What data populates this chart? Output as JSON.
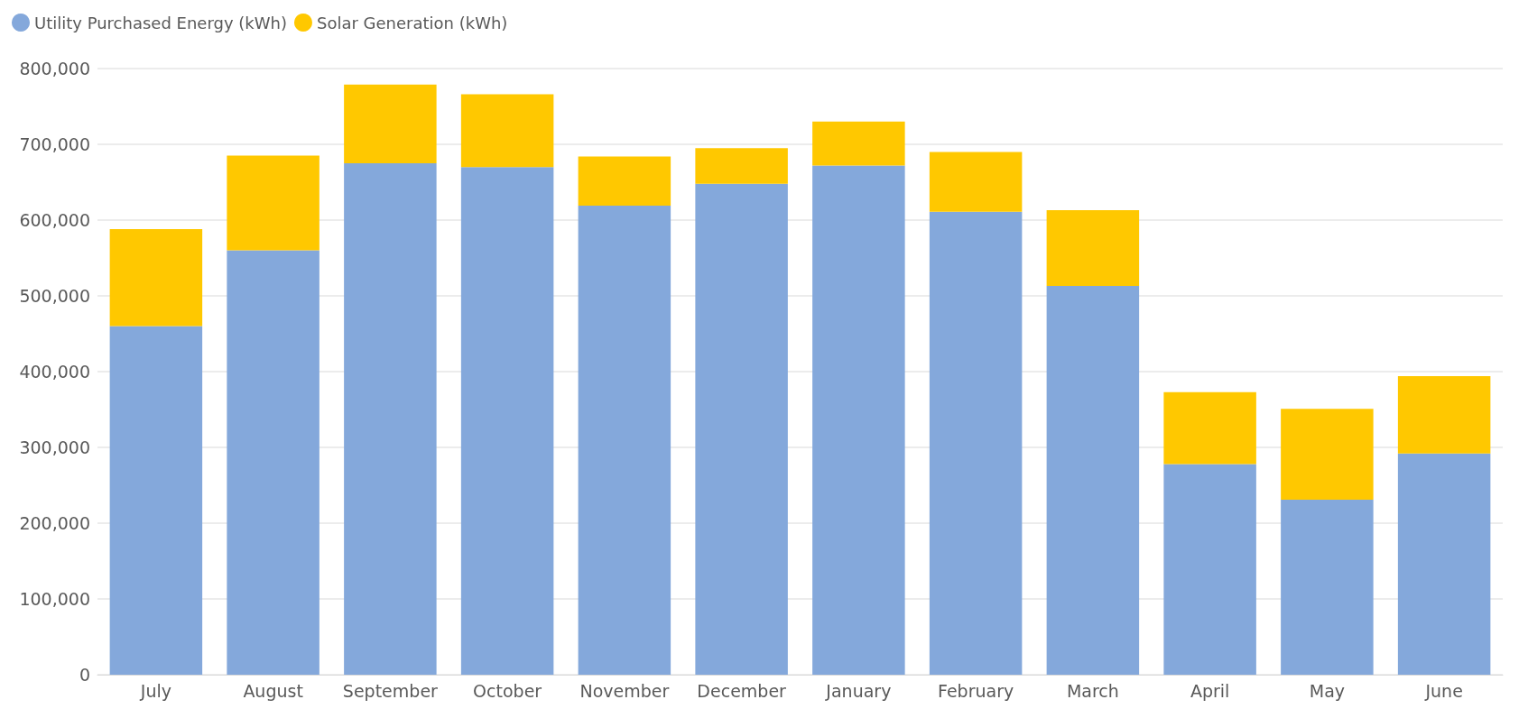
{
  "chart_data": {
    "type": "bar",
    "stacked": true,
    "categories": [
      "July",
      "August",
      "September",
      "October",
      "November",
      "December",
      "January",
      "February",
      "March",
      "April",
      "May",
      "June"
    ],
    "series": [
      {
        "name": "Utility Purchased Energy (kWh)",
        "color": "#84a8db",
        "values": [
          460000,
          560000,
          675000,
          670000,
          619000,
          648000,
          672000,
          611000,
          513000,
          278000,
          231000,
          292000
        ]
      },
      {
        "name": "Solar Generation (kWh)",
        "color": "#ffc800",
        "values": [
          128000,
          125000,
          104000,
          96000,
          65000,
          47000,
          58000,
          79000,
          100000,
          95000,
          120000,
          102000
        ]
      }
    ],
    "ylim": [
      0,
      800000
    ],
    "yticks": [
      0,
      {
        "value": 100000,
        "label": "100,000"
      },
      {
        "value": 200000,
        "label": "200,000"
      },
      {
        "value": 300000,
        "label": "300,000"
      },
      {
        "value": 400000,
        "label": "400,000"
      },
      {
        "value": 500000,
        "label": "500,000"
      },
      {
        "value": 600000,
        "label": "600,000"
      },
      {
        "value": 700000,
        "label": "700,000"
      },
      {
        "value": 800000,
        "label": "800,000"
      }
    ],
    "grid": "y",
    "legend": "top left"
  }
}
